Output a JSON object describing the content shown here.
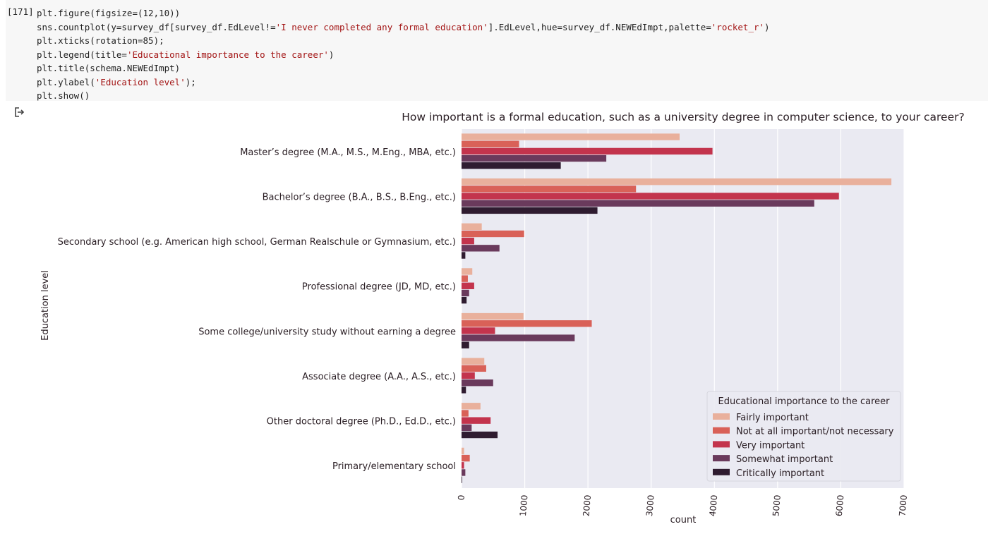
{
  "cell": {
    "exec_count": "[171]",
    "code_lines": [
      [
        [
          "plt.figure(figsize=(12,10))",
          ""
        ]
      ],
      [
        [
          "sns.countplot(y=survey_df[survey_df.EdLevel!=",
          ""
        ],
        [
          "'I never completed any formal education'",
          "s"
        ],
        [
          "].EdLevel,hue=survey_df.NEWEdImpt,palette=",
          ""
        ],
        [
          "'rocket_r'",
          "s"
        ],
        [
          ")",
          ""
        ]
      ],
      [
        [
          "plt.xticks(rotation=85);",
          ""
        ]
      ],
      [
        [
          "plt.legend(title=",
          ""
        ],
        [
          "'Educational importance to the career'",
          "s"
        ],
        [
          ")",
          ""
        ]
      ],
      [
        [
          "plt.title(schema.NEWEdImpt)",
          ""
        ]
      ],
      [
        [
          "plt.ylabel(",
          ""
        ],
        [
          "'Education level'",
          "s"
        ],
        [
          ");",
          ""
        ]
      ],
      [
        [
          "plt.show()",
          ""
        ]
      ]
    ]
  },
  "output_icon": "output-arrow-icon",
  "chart_data": {
    "type": "bar",
    "orientation": "horizontal",
    "title": "How important is a formal education, such as a university degree in computer science, to your career?",
    "xlabel": "count",
    "ylabel": "Education level",
    "xlim": [
      0,
      7000
    ],
    "xticks": [
      "0",
      "1000",
      "2000",
      "3000",
      "4000",
      "5000",
      "6000",
      "7000"
    ],
    "grid": true,
    "legend": {
      "title": "Educational importance to the career",
      "placement": "bottom-right"
    },
    "categories": [
      "Master’s degree (M.A., M.S., M.Eng., MBA, etc.)",
      "Bachelor’s degree (B.A., B.S., B.Eng., etc.)",
      "Secondary school (e.g. American high school, German Realschule or Gymnasium, etc.)",
      "Professional degree (JD, MD, etc.)",
      "Some college/university study without earning a degree",
      "Associate degree (A.A., A.S., etc.)",
      "Other doctoral degree (Ph.D., Ed.D., etc.)",
      "Primary/elementary school"
    ],
    "series": [
      {
        "name": "Fairly important",
        "color": "#e9b09c",
        "values": [
          3450,
          6800,
          320,
          170,
          980,
          360,
          300,
          40
        ]
      },
      {
        "name": "Not at all important/not necessary",
        "color": "#d96158",
        "values": [
          910,
          2760,
          990,
          100,
          2060,
          390,
          110,
          130
        ]
      },
      {
        "name": "Very important",
        "color": "#c3344d",
        "values": [
          3970,
          5970,
          200,
          200,
          530,
          210,
          460,
          40
        ]
      },
      {
        "name": "Somewhat important",
        "color": "#6a3a5c",
        "values": [
          2290,
          5580,
          600,
          120,
          1790,
          500,
          160,
          60
        ]
      },
      {
        "name": "Critically important",
        "color": "#2f1c30",
        "values": [
          1570,
          2150,
          60,
          80,
          120,
          70,
          570,
          10
        ]
      }
    ]
  }
}
